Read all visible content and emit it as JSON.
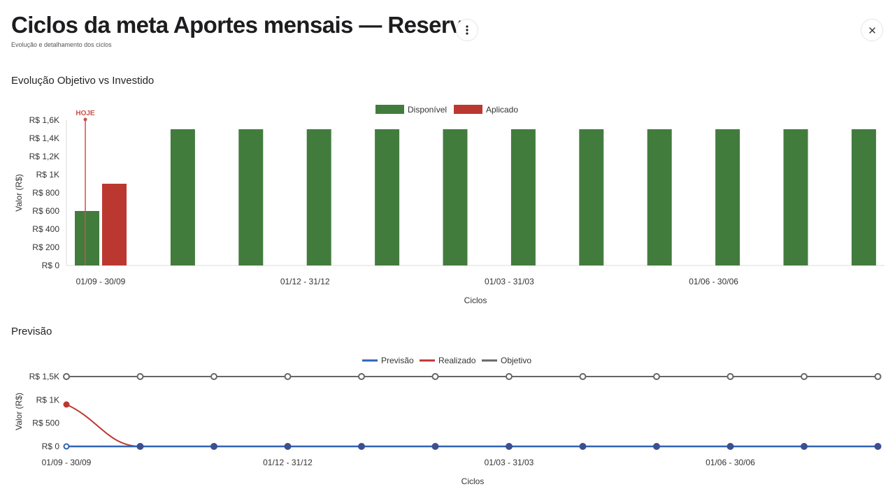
{
  "header": {
    "title": "Ciclos da meta Aportes mensais — Reserva",
    "subtitle": "Evolução e detalhamento dos ciclos"
  },
  "sections": {
    "evolution_title": "Evolução Objetivo vs Investido",
    "forecast_title": "Previsão"
  },
  "icons": {
    "menu": "more-vertical-icon",
    "close": "close-icon"
  },
  "chart_data": [
    {
      "type": "bar",
      "title": "",
      "xlabel": "Ciclos",
      "ylabel": "Valor (R$)",
      "ylim": [
        0,
        1600
      ],
      "y_ticks": [
        "R$ 0",
        "R$ 200",
        "R$ 400",
        "R$ 600",
        "R$ 800",
        "R$ 1K",
        "R$ 1,2K",
        "R$ 1,4K",
        "R$ 1,6K"
      ],
      "x_tick_labels": [
        "01/09 - 30/09",
        "01/12 - 31/12",
        "01/03 - 31/03",
        "01/06 - 30/06"
      ],
      "legend_position": "top-center",
      "marker_label": "HOJE",
      "series": [
        {
          "name": "Disponível",
          "color": "#427c3d",
          "values": [
            600,
            1500,
            1500,
            1500,
            1500,
            1500,
            1500,
            1500,
            1500,
            1500,
            1500,
            1500
          ]
        },
        {
          "name": "Aplicado",
          "color": "#bb3830",
          "values": [
            900,
            null,
            null,
            null,
            null,
            null,
            null,
            null,
            null,
            null,
            null,
            null
          ]
        }
      ]
    },
    {
      "type": "line",
      "title": "",
      "xlabel": "Ciclos",
      "ylabel": "Valor (R$)",
      "ylim": [
        0,
        1500
      ],
      "y_ticks": [
        "R$ 0",
        "R$ 500",
        "R$ 1K",
        "R$ 1,5K"
      ],
      "x_tick_labels": [
        "01/09 - 30/09",
        "01/12 - 31/12",
        "01/03 - 31/03",
        "01/06 - 30/06"
      ],
      "legend_position": "top-center",
      "series": [
        {
          "name": "Previsão",
          "color": "#2f63b4",
          "values": [
            0,
            0,
            0,
            0,
            0,
            0,
            0,
            0,
            0,
            0,
            0,
            0
          ]
        },
        {
          "name": "Realizado",
          "color": "#bb3830",
          "values": [
            900,
            0,
            null,
            null,
            null,
            null,
            null,
            null,
            null,
            null,
            null,
            null
          ]
        },
        {
          "name": "Objetivo",
          "color": "#666666",
          "values": [
            1500,
            1500,
            1500,
            1500,
            1500,
            1500,
            1500,
            1500,
            1500,
            1500,
            1500,
            1500
          ]
        }
      ]
    }
  ]
}
